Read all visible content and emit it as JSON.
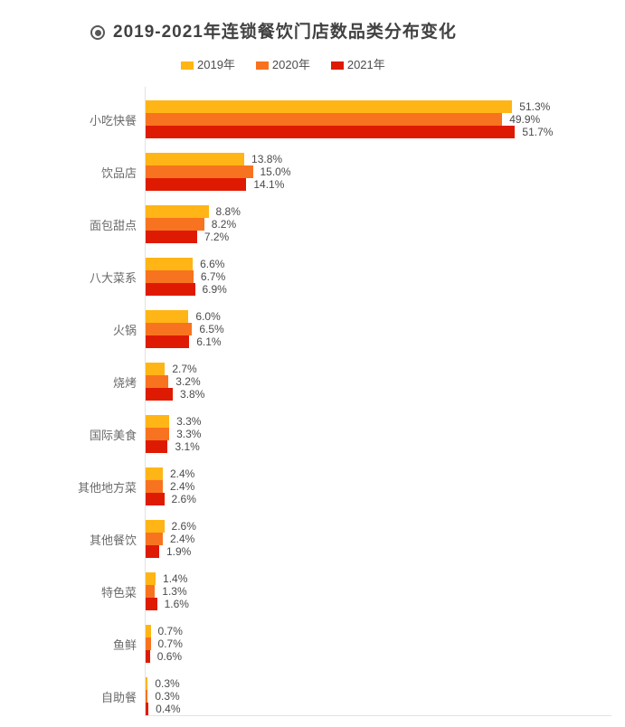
{
  "title": "2019-2021年连锁餐饮门店数品类分布变化",
  "title_icon": "bullseye-icon",
  "colors": {
    "title_text": "#414141",
    "title_icon": "#57585a",
    "category_label": "#6a6a6a",
    "value_label": "#4a4a4a",
    "axis_line": "#e2e2e2",
    "background": "#ffffff"
  },
  "chart_data": {
    "type": "bar",
    "orientation": "horizontal",
    "title": "2019-2021年连锁餐饮门店数品类分布变化",
    "unit": "%",
    "legend_position": "top",
    "value_labels": true,
    "grid": false,
    "xlim": [
      0,
      55
    ],
    "categories": [
      "小吃快餐",
      "饮品店",
      "面包甜点",
      "八大菜系",
      "火锅",
      "烧烤",
      "国际美食",
      "其他地方菜",
      "其他餐饮",
      "特色菜",
      "鱼鲜",
      "自助餐"
    ],
    "series": [
      {
        "name": "2019年",
        "color": "#FFB515",
        "values": [
          51.3,
          13.8,
          8.8,
          6.6,
          6.0,
          2.7,
          3.3,
          2.4,
          2.6,
          1.4,
          0.7,
          0.3
        ]
      },
      {
        "name": "2020年",
        "color": "#F8731F",
        "values": [
          49.9,
          15.0,
          8.2,
          6.7,
          6.5,
          3.2,
          3.3,
          2.4,
          2.4,
          1.3,
          0.7,
          0.3
        ]
      },
      {
        "name": "2021年",
        "color": "#DE1B02",
        "values": [
          51.7,
          14.1,
          7.2,
          6.9,
          6.1,
          3.8,
          3.1,
          2.6,
          1.9,
          1.6,
          0.6,
          0.4
        ]
      }
    ]
  }
}
